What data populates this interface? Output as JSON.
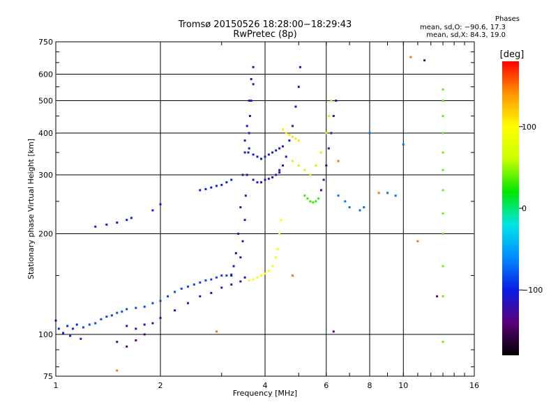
{
  "chart_data": {
    "type": "scatter",
    "title_line1": "Tromsø 20150526 18:28:00−18:29:43",
    "title_line2": "RwPretec (8p)",
    "xlabel": "Frequency [MHz]",
    "ylabel": "Stationary phase Virtual Height [km]",
    "x_scale": "log",
    "y_scale": "log",
    "xlim": [
      1,
      16
    ],
    "ylim": [
      75,
      750
    ],
    "x_ticks": [
      1,
      2,
      4,
      6,
      8,
      10,
      16
    ],
    "x_tick_labels": [
      "1",
      "2",
      "4",
      "6",
      "8",
      "10",
      "16"
    ],
    "y_ticks": [
      75,
      100,
      200,
      300,
      400,
      500,
      600,
      750
    ],
    "y_tick_labels": [
      "75",
      "100",
      "200",
      "300",
      "400",
      "500",
      "600",
      "750"
    ],
    "grid": true,
    "phases_box": {
      "title": "Phases",
      "line1": "mean, sd,O: −90.6, 17.3",
      "line2": "mean, sd,X: 84.3, 19.0"
    },
    "colorbar": {
      "label": "[deg]",
      "range": [
        -180,
        180
      ],
      "ticks": [
        100,
        0,
        -100
      ],
      "tick_labels": [
        "100",
        "0",
        "−100"
      ],
      "colors": [
        "#000000",
        "#5a0078",
        "#0a1ce6",
        "#008cff",
        "#00e6e6",
        "#00e600",
        "#c8ff00",
        "#ffff00",
        "#ff9600",
        "#ff0000"
      ]
    },
    "series": [
      {
        "phase": -95,
        "points": [
          [
            1.0,
            110
          ],
          [
            1.02,
            104
          ],
          [
            1.05,
            101
          ],
          [
            1.08,
            106
          ],
          [
            1.1,
            99
          ],
          [
            1.12,
            104
          ],
          [
            1.15,
            107
          ],
          [
            1.18,
            97
          ]
        ]
      },
      {
        "phase": -85,
        "points": [
          [
            1.2,
            105
          ],
          [
            1.25,
            107
          ],
          [
            1.3,
            108
          ],
          [
            1.35,
            111
          ],
          [
            1.4,
            113
          ],
          [
            1.45,
            114
          ],
          [
            1.5,
            116
          ],
          [
            1.55,
            117
          ],
          [
            1.6,
            119
          ],
          [
            1.7,
            120
          ],
          [
            1.8,
            121
          ],
          [
            1.9,
            124
          ],
          [
            2.0,
            126
          ],
          [
            2.1,
            130
          ],
          [
            2.2,
            134
          ],
          [
            2.3,
            137
          ],
          [
            2.4,
            139
          ],
          [
            2.5,
            141
          ],
          [
            2.6,
            143
          ],
          [
            2.7,
            145
          ],
          [
            2.8,
            146
          ],
          [
            2.9,
            148
          ],
          [
            3.0,
            150
          ],
          [
            3.1,
            150
          ],
          [
            3.2,
            151
          ]
        ]
      },
      {
        "phase": -110,
        "points": [
          [
            1.6,
            106
          ],
          [
            1.7,
            104
          ],
          [
            1.8,
            107
          ],
          [
            1.9,
            108
          ],
          [
            2.0,
            112
          ],
          [
            2.2,
            118
          ],
          [
            2.4,
            124
          ],
          [
            2.6,
            130
          ],
          [
            2.8,
            133
          ],
          [
            3.0,
            138
          ],
          [
            3.2,
            141
          ],
          [
            3.4,
            144
          ],
          [
            3.5,
            148
          ]
        ]
      },
      {
        "phase": -100,
        "points": [
          [
            1.3,
            210
          ],
          [
            1.4,
            213
          ],
          [
            1.5,
            216
          ],
          [
            1.6,
            220
          ],
          [
            1.65,
            223
          ],
          [
            1.9,
            235
          ],
          [
            2.0,
            245
          ],
          [
            2.6,
            270
          ],
          [
            2.7,
            272
          ],
          [
            2.8,
            275
          ],
          [
            2.9,
            278
          ],
          [
            3.0,
            280
          ],
          [
            3.1,
            285
          ],
          [
            3.2,
            290
          ]
        ]
      },
      {
        "phase": -120,
        "points": [
          [
            3.2,
            150
          ],
          [
            3.25,
            160
          ],
          [
            3.3,
            175
          ],
          [
            3.35,
            200
          ],
          [
            3.4,
            240
          ],
          [
            3.45,
            300
          ],
          [
            3.5,
            350
          ],
          [
            3.55,
            420
          ],
          [
            3.6,
            500
          ],
          [
            3.65,
            580
          ],
          [
            3.7,
            630
          ]
        ]
      },
      {
        "phase": -115,
        "points": [
          [
            3.4,
            170
          ],
          [
            3.45,
            190
          ],
          [
            3.5,
            220
          ],
          [
            3.52,
            260
          ],
          [
            3.55,
            300
          ],
          [
            3.58,
            350
          ],
          [
            3.6,
            400
          ],
          [
            3.62,
            450
          ],
          [
            3.65,
            500
          ],
          [
            3.7,
            560
          ]
        ]
      },
      {
        "phase": -105,
        "points": [
          [
            3.5,
            380
          ],
          [
            3.6,
            360
          ],
          [
            3.7,
            345
          ],
          [
            3.8,
            340
          ],
          [
            3.9,
            335
          ],
          [
            4.0,
            340
          ],
          [
            4.1,
            345
          ],
          [
            4.2,
            350
          ],
          [
            4.3,
            355
          ],
          [
            4.4,
            360
          ],
          [
            4.5,
            365
          ]
        ]
      },
      {
        "phase": -110,
        "points": [
          [
            3.7,
            290
          ],
          [
            3.8,
            285
          ],
          [
            3.9,
            285
          ],
          [
            4.0,
            290
          ],
          [
            4.1,
            292
          ],
          [
            4.2,
            295
          ],
          [
            4.3,
            300
          ],
          [
            4.4,
            305
          ]
        ]
      },
      {
        "phase": -115,
        "points": [
          [
            4.4,
            310
          ],
          [
            4.5,
            320
          ],
          [
            4.6,
            340
          ],
          [
            4.7,
            380
          ],
          [
            4.8,
            420
          ],
          [
            4.9,
            480
          ],
          [
            5.0,
            550
          ],
          [
            5.05,
            630
          ]
        ]
      },
      {
        "phase": 95,
        "points": [
          [
            3.6,
            145
          ],
          [
            3.7,
            146
          ],
          [
            3.8,
            148
          ],
          [
            3.9,
            150
          ],
          [
            4.0,
            152
          ],
          [
            4.1,
            155
          ],
          [
            4.2,
            160
          ],
          [
            4.3,
            170
          ],
          [
            4.35,
            180
          ],
          [
            4.4,
            200
          ],
          [
            4.45,
            220
          ]
        ]
      },
      {
        "phase": 110,
        "points": [
          [
            4.5,
            410
          ],
          [
            4.6,
            400
          ],
          [
            4.7,
            395
          ],
          [
            4.8,
            390
          ],
          [
            4.9,
            385
          ],
          [
            5.0,
            380
          ]
        ]
      },
      {
        "phase": 60,
        "points": [
          [
            4.8,
            330
          ],
          [
            5.0,
            320
          ],
          [
            5.2,
            310
          ],
          [
            5.4,
            300
          ],
          [
            5.6,
            320
          ],
          [
            5.8,
            350
          ],
          [
            6.0,
            400
          ],
          [
            6.1,
            450
          ],
          [
            6.2,
            500
          ]
        ]
      },
      {
        "phase": 30,
        "points": [
          [
            5.2,
            260
          ],
          [
            5.3,
            255
          ],
          [
            5.4,
            250
          ],
          [
            5.5,
            248
          ],
          [
            5.6,
            250
          ],
          [
            5.7,
            255
          ]
        ]
      },
      {
        "phase": -130,
        "points": [
          [
            5.8,
            270
          ],
          [
            5.9,
            290
          ],
          [
            6.0,
            320
          ],
          [
            6.1,
            360
          ],
          [
            6.2,
            400
          ],
          [
            6.3,
            450
          ],
          [
            6.4,
            500
          ]
        ]
      },
      {
        "phase": -70,
        "points": [
          [
            6.5,
            260
          ],
          [
            6.8,
            250
          ],
          [
            7.0,
            240
          ],
          [
            7.5,
            235
          ],
          [
            7.7,
            240
          ],
          [
            8.0,
            400
          ],
          [
            9.0,
            265
          ],
          [
            9.5,
            260
          ],
          [
            10.0,
            370
          ]
        ]
      },
      {
        "phase": 40,
        "points": [
          [
            13.0,
            540
          ],
          [
            13.0,
            500
          ],
          [
            13.0,
            450
          ],
          [
            13.0,
            400
          ],
          [
            13.0,
            350
          ],
          [
            13.0,
            310
          ],
          [
            13.0,
            270
          ],
          [
            13.0,
            230
          ],
          [
            13.0,
            200
          ],
          [
            13.0,
            160
          ],
          [
            13.0,
            130
          ],
          [
            13.0,
            95
          ]
        ]
      },
      {
        "phase": 150,
        "points": [
          [
            1.5,
            78
          ],
          [
            2.9,
            102
          ],
          [
            4.8,
            150
          ],
          [
            6.5,
            330
          ],
          [
            8.5,
            265
          ],
          [
            10.5,
            675
          ],
          [
            11.0,
            190
          ]
        ]
      },
      {
        "phase": -140,
        "points": [
          [
            1.5,
            95
          ],
          [
            1.6,
            92
          ],
          [
            1.7,
            96
          ],
          [
            1.8,
            100
          ],
          [
            6.3,
            102
          ],
          [
            11.5,
            660
          ],
          [
            12.5,
            130
          ]
        ]
      }
    ]
  }
}
